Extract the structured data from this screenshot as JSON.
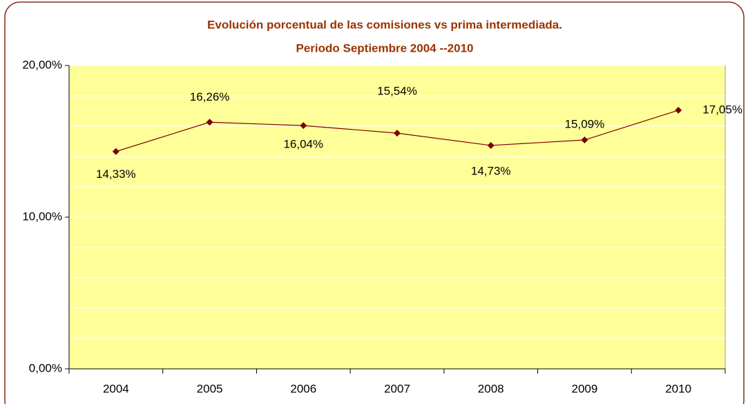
{
  "chart_data": {
    "type": "line",
    "title": "Evolución porcentual de las comisiones vs prima intermediada.",
    "subtitle": "Periodo Septiembre 2004 --2010",
    "categories": [
      "2004",
      "2005",
      "2006",
      "2007",
      "2008",
      "2009",
      "2010"
    ],
    "series": [
      {
        "color": "#7b0000",
        "values": [
          14.33,
          16.26,
          16.04,
          15.54,
          14.73,
          15.09,
          17.05
        ],
        "value_labels": [
          "14,33%",
          "16,26%",
          "16,04%",
          "15,54%",
          "14,73%",
          "15,09%",
          "17,05%"
        ]
      }
    ],
    "ylim": [
      0,
      20
    ],
    "yticks": [
      {
        "value": 0,
        "label": "0,00%"
      },
      {
        "value": 10,
        "label": "10,00%"
      },
      {
        "value": 20,
        "label": "20,00%"
      }
    ],
    "minor_yticks": [
      2,
      4,
      6,
      8,
      12,
      14,
      16,
      18
    ],
    "grid": true,
    "plot_background": "#ffff99"
  }
}
